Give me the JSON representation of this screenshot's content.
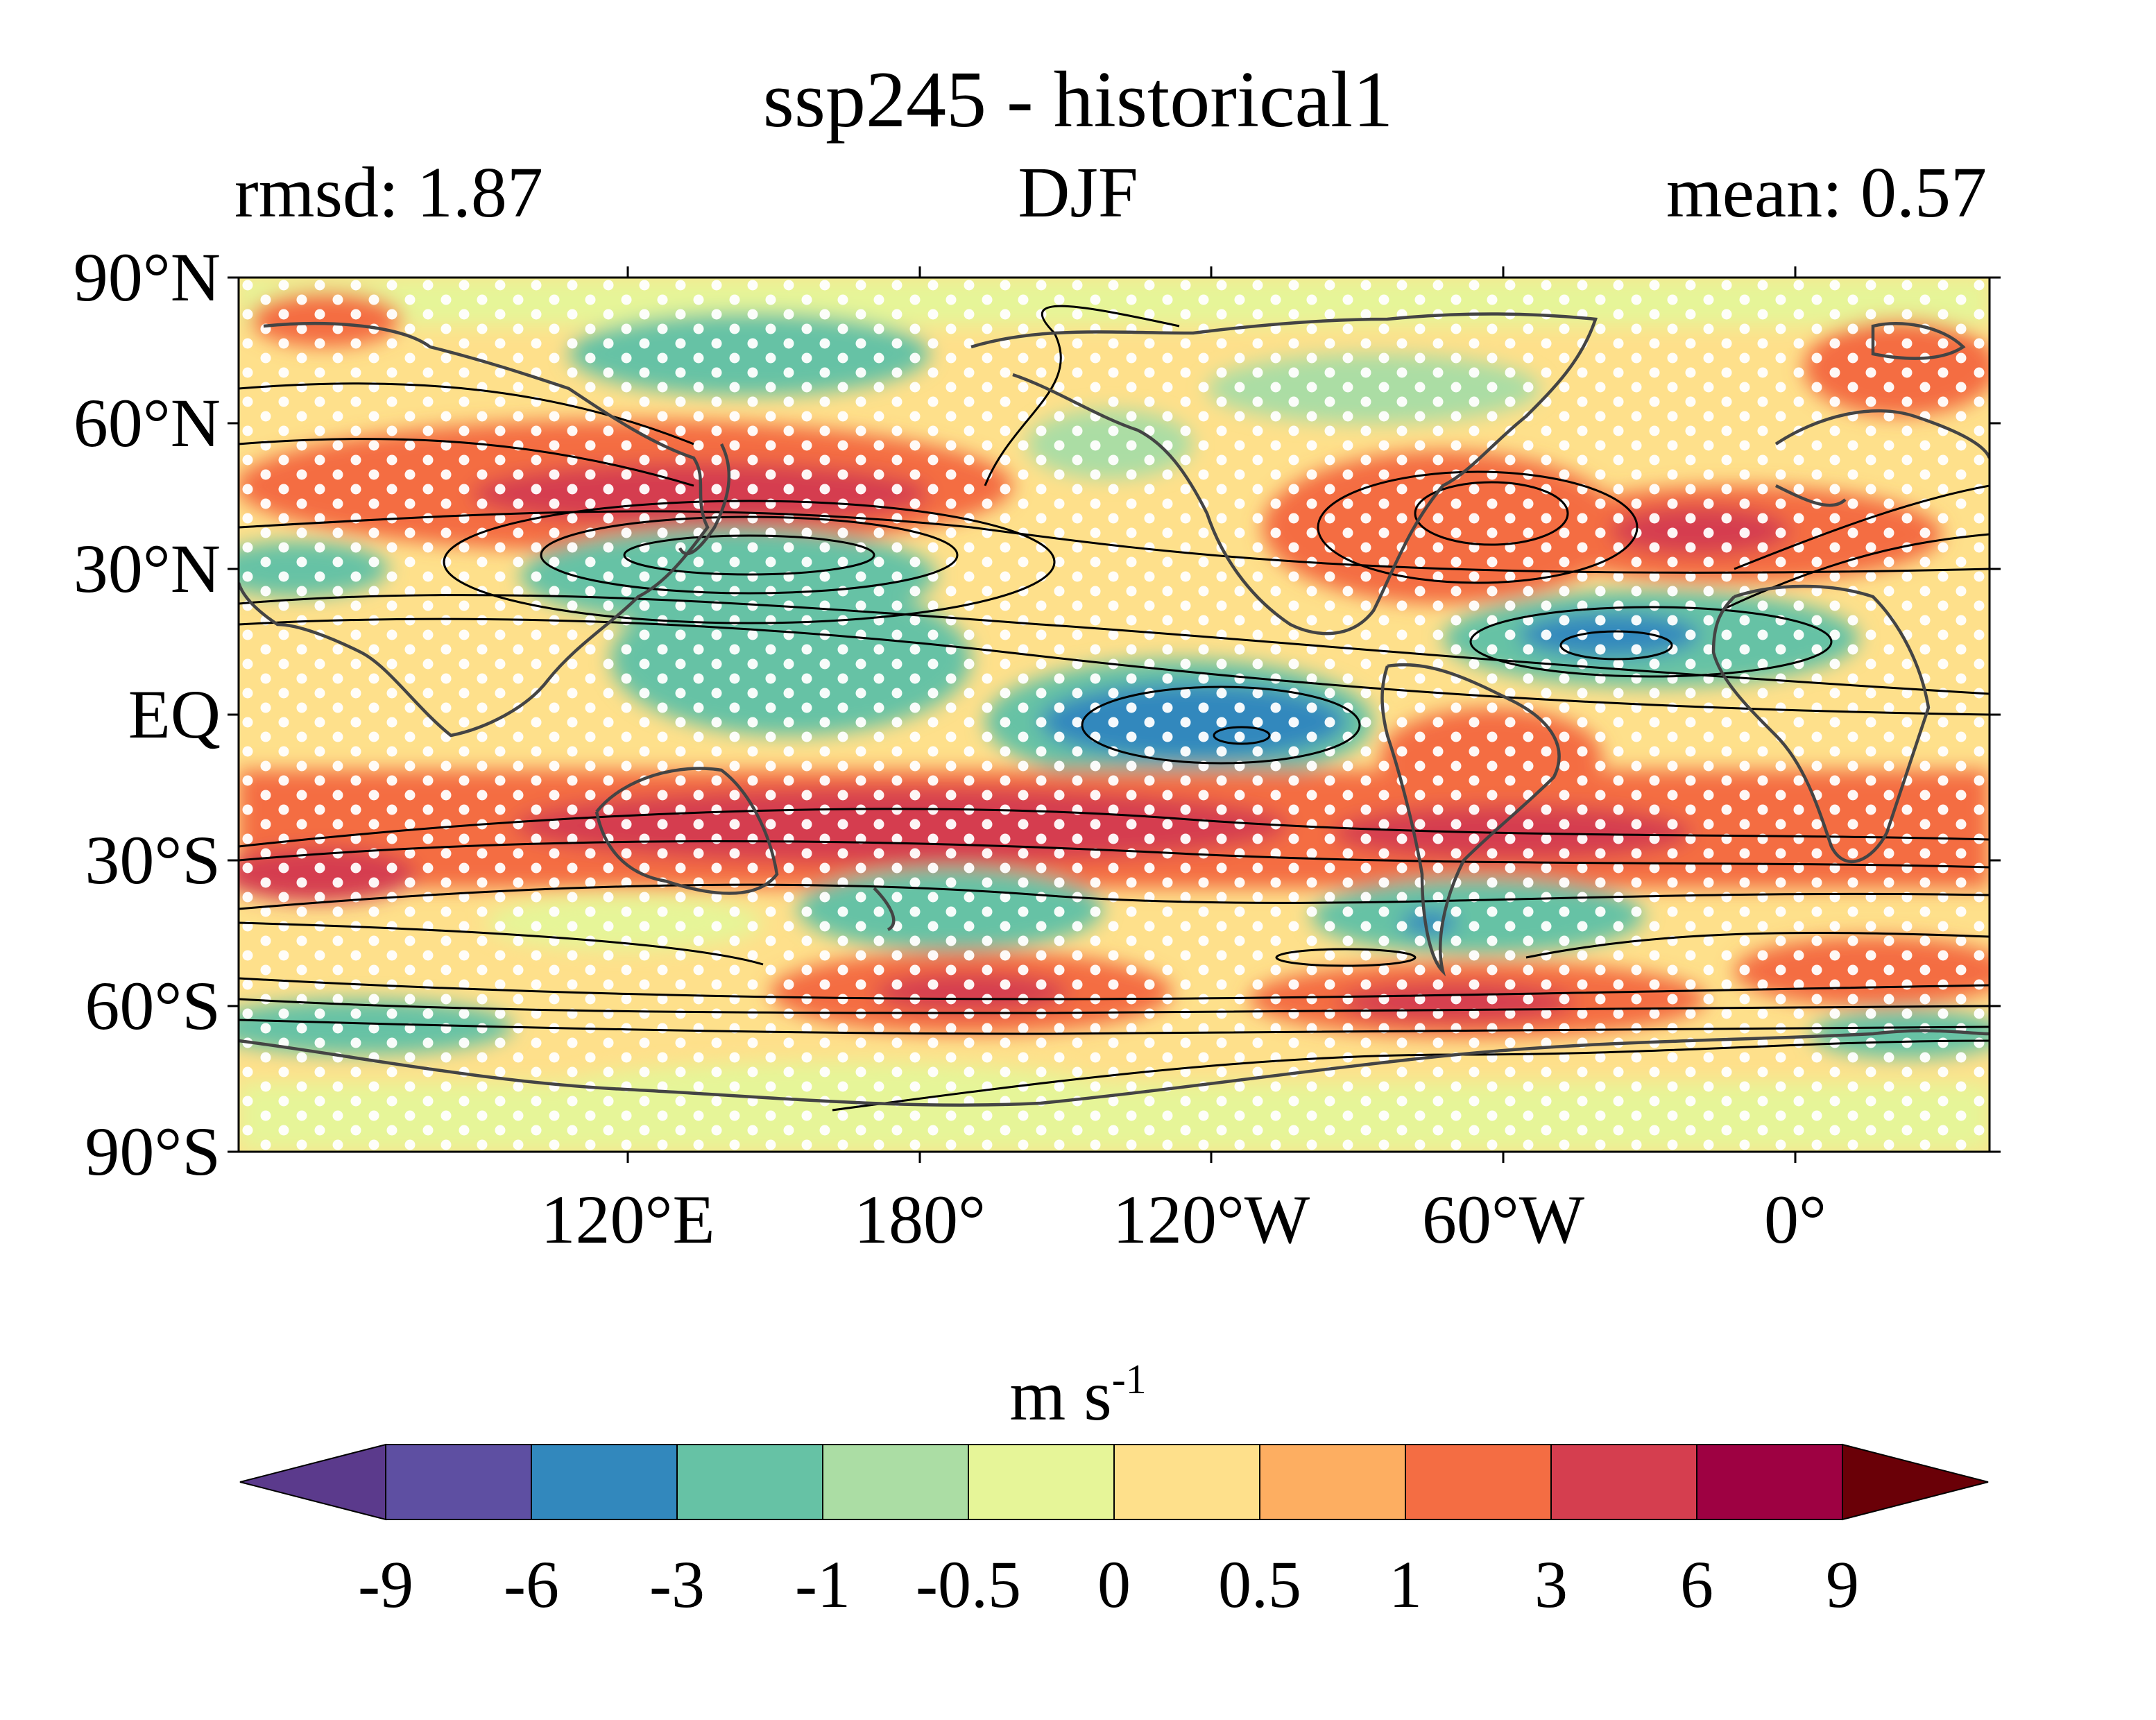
{
  "title": "ssp245 - historical1",
  "subtitle": {
    "left": "rmsd: 1.87",
    "center": "DJF",
    "right": "mean: 0.57"
  },
  "map": {
    "projection": "equirectangular",
    "central_longitude": 160,
    "lat_labels": [
      "90°N",
      "60°N",
      "30°N",
      "EQ",
      "30°S",
      "60°S",
      "90°S"
    ],
    "lon_labels": [
      "120°E",
      "180°",
      "120°W",
      "60°W",
      "0°"
    ],
    "stippling": "white dots mark areas of agreement",
    "contours": "black lines show historical climatology"
  },
  "colorbar": {
    "unit_main": "m s",
    "unit_sup": "-1",
    "ticks": [
      "-9",
      "-6",
      "-3",
      "-1",
      "-0.5",
      "0",
      "0.5",
      "1",
      "3",
      "6",
      "9"
    ],
    "colors": [
      "#5e4fa2",
      "#3288bd",
      "#66c2a5",
      "#abdda4",
      "#e6f598",
      "#fee08b",
      "#fdae61",
      "#f46d43",
      "#d53e4f",
      "#9e0142"
    ],
    "extend_low_color": "#5b3a8c",
    "extend_high_color": "#6a0007"
  },
  "palette": {
    "ocean_base": "#fee08b",
    "coast": "#444444"
  }
}
